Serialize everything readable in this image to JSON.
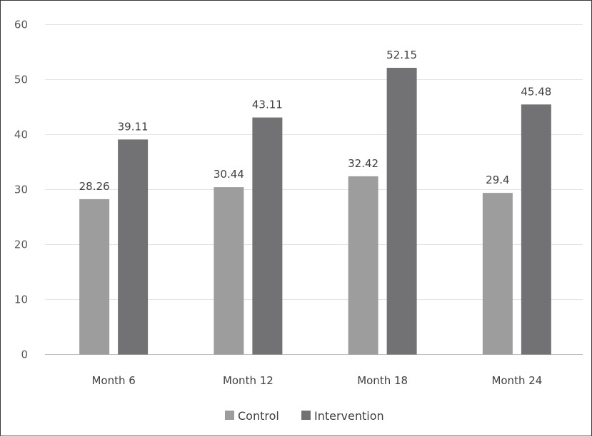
{
  "chart_data": {
    "type": "bar",
    "categories": [
      "Month 6",
      "Month 12",
      "Month 18",
      "Month 24"
    ],
    "series": [
      {
        "name": "Control",
        "color": "#9d9d9e",
        "values": [
          28.26,
          30.44,
          32.42,
          29.4
        ]
      },
      {
        "name": "Intervention",
        "color": "#727275",
        "values": [
          39.11,
          43.11,
          52.15,
          45.48
        ]
      }
    ],
    "data_labels": [
      [
        "28.26",
        "30.44",
        "32.42",
        "29.4"
      ],
      [
        "39.11",
        "43.11",
        "52.15",
        "45.48"
      ]
    ],
    "title": "",
    "xlabel": "",
    "ylabel": "",
    "ylim": [
      0,
      60
    ],
    "yticks": [
      "0",
      "10",
      "20",
      "30",
      "40",
      "50",
      "60"
    ],
    "grid": true,
    "legend_position": "bottom-center"
  }
}
